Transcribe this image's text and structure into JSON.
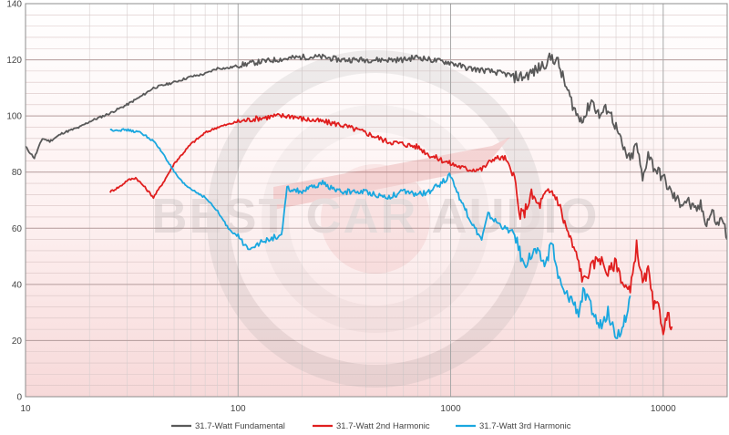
{
  "chart_data": {
    "type": "line",
    "x_scale": "log",
    "xlim": [
      10,
      20000
    ],
    "ylim": [
      0,
      140
    ],
    "x_ticks": [
      10,
      100,
      1000,
      10000
    ],
    "x_tick_labels": [
      "10",
      "100",
      "1000",
      "10000"
    ],
    "y_ticks": [
      0,
      20,
      40,
      60,
      80,
      100,
      120,
      140
    ],
    "y_tick_labels": [
      "0",
      "20",
      "40",
      "60",
      "80",
      "100",
      "120",
      "140"
    ],
    "grid": true,
    "legend_position": "bottom",
    "watermark_text": "BEST CAR AUDIO",
    "series": [
      {
        "name": "31.7-Watt Fundamental",
        "color": "#595959",
        "points": [
          [
            10,
            89
          ],
          [
            11,
            85
          ],
          [
            12,
            92
          ],
          [
            13,
            91
          ],
          [
            15,
            94
          ],
          [
            18,
            96
          ],
          [
            20,
            98
          ],
          [
            25,
            101
          ],
          [
            30,
            104
          ],
          [
            35,
            107
          ],
          [
            40,
            110
          ],
          [
            50,
            112
          ],
          [
            60,
            114
          ],
          [
            70,
            115
          ],
          [
            80,
            117
          ],
          [
            90,
            117
          ],
          [
            100,
            118
          ],
          [
            120,
            119
          ],
          [
            150,
            120
          ],
          [
            200,
            121
          ],
          [
            250,
            121
          ],
          [
            300,
            120
          ],
          [
            400,
            120
          ],
          [
            500,
            120
          ],
          [
            600,
            120
          ],
          [
            700,
            121
          ],
          [
            800,
            120
          ],
          [
            1000,
            119
          ],
          [
            1200,
            117
          ],
          [
            1500,
            116
          ],
          [
            1800,
            115
          ],
          [
            2000,
            114
          ],
          [
            2200,
            114
          ],
          [
            2500,
            116
          ],
          [
            2800,
            119
          ],
          [
            3000,
            121
          ],
          [
            3200,
            119
          ],
          [
            3500,
            110
          ],
          [
            3800,
            103
          ],
          [
            4000,
            99
          ],
          [
            4300,
            100
          ],
          [
            4600,
            106
          ],
          [
            5000,
            100
          ],
          [
            5500,
            103
          ],
          [
            6000,
            96
          ],
          [
            6500,
            88
          ],
          [
            7000,
            84
          ],
          [
            7500,
            90
          ],
          [
            8000,
            77
          ],
          [
            8500,
            87
          ],
          [
            9000,
            82
          ],
          [
            10000,
            78
          ],
          [
            11000,
            72
          ],
          [
            12000,
            69
          ],
          [
            13000,
            70
          ],
          [
            14000,
            66
          ],
          [
            15000,
            68
          ],
          [
            16000,
            62
          ],
          [
            17000,
            66
          ],
          [
            18000,
            61
          ],
          [
            19000,
            64
          ],
          [
            20000,
            56
          ]
        ]
      },
      {
        "name": "31.7-Watt 2nd Harmonic",
        "color": "#e01e1e",
        "points": [
          [
            25,
            73
          ],
          [
            28,
            75
          ],
          [
            30,
            77
          ],
          [
            33,
            78
          ],
          [
            36,
            75
          ],
          [
            40,
            71
          ],
          [
            45,
            77
          ],
          [
            50,
            83
          ],
          [
            60,
            90
          ],
          [
            70,
            94
          ],
          [
            80,
            96
          ],
          [
            90,
            97
          ],
          [
            100,
            98
          ],
          [
            120,
            99
          ],
          [
            150,
            100
          ],
          [
            180,
            100
          ],
          [
            200,
            99
          ],
          [
            250,
            98
          ],
          [
            300,
            97
          ],
          [
            400,
            94
          ],
          [
            500,
            91
          ],
          [
            600,
            90
          ],
          [
            700,
            89
          ],
          [
            800,
            86
          ],
          [
            1000,
            83
          ],
          [
            1200,
            81
          ],
          [
            1400,
            81
          ],
          [
            1600,
            85
          ],
          [
            1800,
            85
          ],
          [
            2000,
            78
          ],
          [
            2100,
            65
          ],
          [
            2200,
            65
          ],
          [
            2400,
            72
          ],
          [
            2600,
            68
          ],
          [
            2800,
            72
          ],
          [
            3000,
            73
          ],
          [
            3200,
            70
          ],
          [
            3400,
            63
          ],
          [
            3700,
            55
          ],
          [
            4000,
            48
          ],
          [
            4200,
            41
          ],
          [
            4500,
            45
          ],
          [
            5000,
            50
          ],
          [
            5500,
            44
          ],
          [
            6000,
            48
          ],
          [
            6500,
            40
          ],
          [
            7000,
            37
          ],
          [
            7500,
            54
          ],
          [
            8000,
            40
          ],
          [
            8500,
            45
          ],
          [
            9000,
            32
          ],
          [
            9500,
            32
          ],
          [
            10000,
            24
          ],
          [
            10500,
            29
          ],
          [
            11000,
            25
          ]
        ]
      },
      {
        "name": "31.7-Watt 3rd Harmonic",
        "color": "#1aa7df",
        "points": [
          [
            25,
            95
          ],
          [
            30,
            95
          ],
          [
            35,
            94
          ],
          [
            40,
            91
          ],
          [
            45,
            86
          ],
          [
            50,
            80
          ],
          [
            55,
            76
          ],
          [
            60,
            74
          ],
          [
            70,
            71
          ],
          [
            80,
            66
          ],
          [
            90,
            60
          ],
          [
            100,
            57
          ],
          [
            110,
            53
          ],
          [
            120,
            54
          ],
          [
            130,
            55
          ],
          [
            140,
            56
          ],
          [
            150,
            57
          ],
          [
            160,
            57
          ],
          [
            170,
            74
          ],
          [
            200,
            73
          ],
          [
            250,
            76
          ],
          [
            300,
            73
          ],
          [
            400,
            73
          ],
          [
            500,
            71
          ],
          [
            600,
            73
          ],
          [
            700,
            72
          ],
          [
            800,
            73
          ],
          [
            900,
            76
          ],
          [
            1000,
            79
          ],
          [
            1100,
            71
          ],
          [
            1200,
            65
          ],
          [
            1300,
            60
          ],
          [
            1400,
            56
          ],
          [
            1500,
            65
          ],
          [
            1600,
            63
          ],
          [
            1800,
            60
          ],
          [
            2000,
            58
          ],
          [
            2200,
            47
          ],
          [
            2500,
            52
          ],
          [
            2800,
            47
          ],
          [
            3000,
            55
          ],
          [
            3200,
            43
          ],
          [
            3400,
            37
          ],
          [
            3700,
            35
          ],
          [
            4000,
            30
          ],
          [
            4200,
            37
          ],
          [
            4500,
            33
          ],
          [
            5000,
            25
          ],
          [
            5500,
            30
          ],
          [
            6000,
            22
          ],
          [
            6500,
            25
          ],
          [
            7000,
            36
          ]
        ]
      }
    ]
  }
}
